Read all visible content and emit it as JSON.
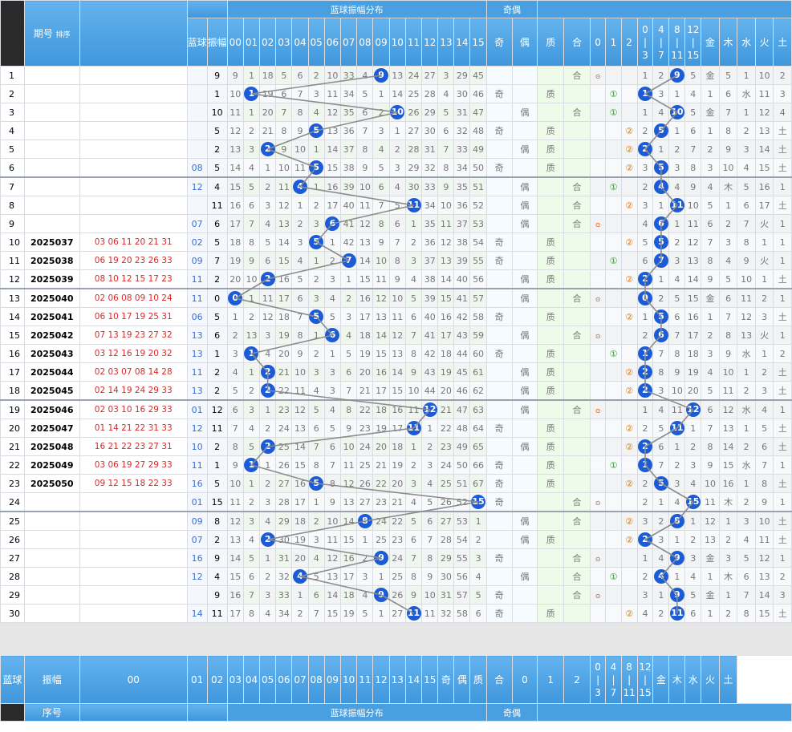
{
  "header": {
    "seq_label": "序号",
    "period_label": "期号",
    "sort_label": "排序",
    "blue_label": "蓝球",
    "amp_label": "振幅",
    "group_amp": "蓝球振幅分布",
    "group_parity": "奇偶",
    "amp_cols": [
      "00",
      "01",
      "02",
      "03",
      "04",
      "05",
      "06",
      "07",
      "08",
      "09",
      "10",
      "11",
      "12",
      "13",
      "14",
      "15"
    ],
    "parity_cols": [
      "奇",
      "偶"
    ],
    "prime_cols": [
      "质",
      "合"
    ],
    "road_cols": [
      "0",
      "1",
      "2"
    ],
    "range_cols": [
      "0-3",
      "4-7",
      "8-11",
      "12-15"
    ],
    "range_top": [
      "0",
      "4",
      "8",
      "12"
    ],
    "range_mid": [
      "|",
      "|",
      "|",
      "|"
    ],
    "range_bot": [
      "3",
      "7",
      "11",
      "15"
    ],
    "wuxing_cols": [
      "金",
      "木",
      "水",
      "火",
      "土"
    ]
  },
  "rows": [
    {
      "seq": "1",
      "period": "",
      "nums": "",
      "blue": "",
      "amp": "9",
      "hit": 9,
      "cells": [
        "9",
        "1",
        "18",
        "5",
        "6",
        "2",
        "10",
        "33",
        "4",
        "9",
        "13",
        "24",
        "27",
        "3",
        "29",
        "45"
      ],
      "parity": "",
      "pr": "合",
      "road": "0",
      "range": 2,
      "wx": "金",
      "rng": [
        "1",
        "2",
        "9",
        "5"
      ],
      "wxv": [
        "金",
        "5",
        "1",
        "10",
        "2"
      ]
    },
    {
      "seq": "2",
      "period": "",
      "nums": "",
      "blue": "",
      "amp": "1",
      "hit": 1,
      "cells": [
        "10",
        "1",
        "19",
        "6",
        "7",
        "3",
        "11",
        "34",
        "5",
        "1",
        "14",
        "25",
        "28",
        "4",
        "30",
        "46"
      ],
      "parity": "奇",
      "pr": "质",
      "road": "1",
      "range": 0,
      "wx": "水",
      "rng": [
        "1",
        "3",
        "1",
        "4"
      ],
      "wxv": [
        "1",
        "6",
        "水",
        "11",
        "3"
      ]
    },
    {
      "seq": "3",
      "period": "",
      "nums": "",
      "blue": "",
      "amp": "10",
      "hit": 10,
      "cells": [
        "11",
        "1",
        "20",
        "7",
        "8",
        "4",
        "12",
        "35",
        "6",
        "2",
        "10",
        "26",
        "29",
        "5",
        "31",
        "47"
      ],
      "parity": "偶",
      "pr": "合",
      "road": "1",
      "range": 2,
      "wx": "金",
      "rng": [
        "1",
        "4",
        "10",
        "5"
      ],
      "wxv": [
        "金",
        "7",
        "1",
        "12",
        "4"
      ]
    },
    {
      "seq": "4",
      "period": "",
      "nums": "",
      "blue": "",
      "amp": "5",
      "hit": 5,
      "cells": [
        "12",
        "2",
        "21",
        "8",
        "9",
        "5",
        "13",
        "36",
        "7",
        "3",
        "1",
        "27",
        "30",
        "6",
        "32",
        "48"
      ],
      "parity": "奇",
      "pr": "质",
      "road": "2",
      "range": 1,
      "wx": "土",
      "rng": [
        "2",
        "5",
        "1",
        "6"
      ],
      "wxv": [
        "1",
        "8",
        "2",
        "13",
        "土"
      ]
    },
    {
      "seq": "5",
      "period": "",
      "nums": "",
      "blue": "",
      "amp": "2",
      "hit": 2,
      "cells": [
        "13",
        "3",
        "2",
        "9",
        "10",
        "1",
        "14",
        "37",
        "8",
        "4",
        "2",
        "28",
        "31",
        "7",
        "33",
        "49"
      ],
      "parity": "偶",
      "pr": "质",
      "road": "2",
      "range": 0,
      "wx": "土",
      "rng": [
        "2",
        "1",
        "2",
        "7"
      ],
      "wxv": [
        "2",
        "9",
        "3",
        "14",
        "土"
      ]
    },
    {
      "seq": "6",
      "period": "",
      "nums": "",
      "blue": "08",
      "amp": "5",
      "hit": 5,
      "cells": [
        "14",
        "4",
        "1",
        "10",
        "11",
        "5",
        "15",
        "38",
        "9",
        "5",
        "3",
        "29",
        "32",
        "8",
        "34",
        "50"
      ],
      "parity": "奇",
      "pr": "质",
      "road": "2",
      "range": 1,
      "wx": "土",
      "rng": [
        "3",
        "5",
        "3",
        "8"
      ],
      "wxv": [
        "3",
        "10",
        "4",
        "15",
        "土"
      ]
    },
    {
      "seq": "7",
      "period": "",
      "nums": "",
      "blue": "12",
      "amp": "4",
      "hit": 4,
      "cells": [
        "15",
        "5",
        "2",
        "11",
        "4",
        "1",
        "16",
        "39",
        "10",
        "6",
        "4",
        "30",
        "33",
        "9",
        "35",
        "51"
      ],
      "parity": "偶",
      "pr": "合",
      "road": "1",
      "range": 1,
      "wx": "木",
      "rng": [
        "2",
        "4",
        "4",
        "9"
      ],
      "wxv": [
        "4",
        "木",
        "5",
        "16",
        "1"
      ]
    },
    {
      "seq": "8",
      "period": "",
      "nums": "",
      "blue": "",
      "amp": "11",
      "hit": 11,
      "cells": [
        "16",
        "6",
        "3",
        "12",
        "1",
        "2",
        "17",
        "40",
        "11",
        "7",
        "5",
        "11",
        "34",
        "10",
        "36",
        "52"
      ],
      "parity": "偶",
      "pr": "合",
      "road": "2",
      "range": 2,
      "wx": "土",
      "rng": [
        "3",
        "1",
        "11",
        "10"
      ],
      "wxv": [
        "5",
        "1",
        "6",
        "17",
        "土"
      ]
    },
    {
      "seq": "9",
      "period": "",
      "nums": "",
      "blue": "07",
      "amp": "6",
      "hit": 6,
      "cells": [
        "17",
        "7",
        "4",
        "13",
        "2",
        "3",
        "6",
        "41",
        "12",
        "8",
        "6",
        "1",
        "35",
        "11",
        "37",
        "53"
      ],
      "parity": "偶",
      "pr": "合",
      "road": "0",
      "range": 1,
      "wx": "火",
      "rng": [
        "4",
        "6",
        "1",
        "11"
      ],
      "wxv": [
        "6",
        "2",
        "7",
        "火",
        "1"
      ]
    },
    {
      "seq": "10",
      "period": "2025037",
      "nums": "03 06 11 20 21 31",
      "blue": "02",
      "amp": "5",
      "hit": 5,
      "cells": [
        "18",
        "8",
        "5",
        "14",
        "3",
        "5",
        "1",
        "42",
        "13",
        "9",
        "7",
        "2",
        "36",
        "12",
        "38",
        "54"
      ],
      "parity": "奇",
      "pr": "质",
      "road": "2",
      "range": 1,
      "wx": "",
      "rng": [
        "5",
        "5",
        "2",
        "12"
      ],
      "wxv": [
        "7",
        "3",
        "8",
        "1",
        "1"
      ]
    },
    {
      "seq": "11",
      "period": "2025038",
      "nums": "06 19 20 23 26 33",
      "blue": "09",
      "amp": "7",
      "hit": 7,
      "cells": [
        "19",
        "9",
        "6",
        "15",
        "4",
        "1",
        "2",
        "7",
        "14",
        "10",
        "8",
        "3",
        "37",
        "13",
        "39",
        "55"
      ],
      "parity": "奇",
      "pr": "质",
      "road": "1",
      "range": 1,
      "wx": "火",
      "rng": [
        "6",
        "7",
        "3",
        "13"
      ],
      "wxv": [
        "8",
        "4",
        "9",
        "火",
        "1"
      ]
    },
    {
      "seq": "12",
      "period": "2025039",
      "nums": "08 10 12 15 17 23",
      "blue": "11",
      "amp": "2",
      "hit": 2,
      "cells": [
        "20",
        "10",
        "2",
        "16",
        "5",
        "2",
        "3",
        "1",
        "15",
        "11",
        "9",
        "4",
        "38",
        "14",
        "40",
        "56"
      ],
      "parity": "偶",
      "pr": "质",
      "road": "2",
      "range": 0,
      "wx": "土",
      "rng": [
        "2",
        "1",
        "4",
        "14"
      ],
      "wxv": [
        "9",
        "5",
        "10",
        "1",
        "土"
      ]
    },
    {
      "seq": "13",
      "period": "2025040",
      "nums": "02 06 08 09 10 24",
      "blue": "11",
      "amp": "0",
      "hit": 0,
      "cells": [
        "0",
        "1",
        "11",
        "17",
        "6",
        "3",
        "4",
        "2",
        "16",
        "12",
        "10",
        "5",
        "39",
        "15",
        "41",
        "57"
      ],
      "parity": "偶",
      "pr": "合",
      "road": "0",
      "range": 0,
      "wx": "金",
      "rng": [
        "0",
        "2",
        "5",
        "15"
      ],
      "wxv": [
        "金",
        "6",
        "11",
        "2",
        "1"
      ]
    },
    {
      "seq": "14",
      "period": "2025041",
      "nums": "06 10 17 19 25 31",
      "blue": "06",
      "amp": "5",
      "hit": 5,
      "cells": [
        "1",
        "2",
        "12",
        "18",
        "7",
        "5",
        "5",
        "3",
        "17",
        "13",
        "11",
        "6",
        "40",
        "16",
        "42",
        "58"
      ],
      "parity": "奇",
      "pr": "质",
      "road": "2",
      "range": 1,
      "wx": "土",
      "rng": [
        "1",
        "5",
        "6",
        "16"
      ],
      "wxv": [
        "1",
        "7",
        "12",
        "3",
        "土"
      ]
    },
    {
      "seq": "15",
      "period": "2025042",
      "nums": "07 13 19 23 27 32",
      "blue": "13",
      "amp": "6",
      "hit": 6,
      "cells": [
        "2",
        "13",
        "3",
        "19",
        "8",
        "1",
        "6",
        "4",
        "18",
        "14",
        "12",
        "7",
        "41",
        "17",
        "43",
        "59"
      ],
      "parity": "偶",
      "pr": "合",
      "road": "0",
      "range": 1,
      "wx": "火",
      "rng": [
        "2",
        "6",
        "7",
        "17"
      ],
      "wxv": [
        "2",
        "8",
        "13",
        "火",
        "1"
      ]
    },
    {
      "seq": "16",
      "period": "2025043",
      "nums": "03 12 16 19 20 32",
      "blue": "13",
      "amp": "1",
      "hit": 1,
      "cells": [
        "3",
        "1",
        "4",
        "20",
        "9",
        "2",
        "1",
        "5",
        "19",
        "15",
        "13",
        "8",
        "42",
        "18",
        "44",
        "60"
      ],
      "parity": "奇",
      "pr": "质",
      "road": "1",
      "range": 0,
      "wx": "水",
      "rng": [
        "1",
        "7",
        "8",
        "18"
      ],
      "wxv": [
        "3",
        "9",
        "水",
        "1",
        "2"
      ]
    },
    {
      "seq": "17",
      "period": "2025044",
      "nums": "02 03 07 08 14 28",
      "blue": "11",
      "amp": "2",
      "hit": 2,
      "cells": [
        "4",
        "1",
        "2",
        "21",
        "10",
        "3",
        "3",
        "6",
        "20",
        "16",
        "14",
        "9",
        "43",
        "19",
        "45",
        "61"
      ],
      "parity": "偶",
      "pr": "质",
      "road": "2",
      "range": 0,
      "wx": "土",
      "rng": [
        "2",
        "8",
        "9",
        "19"
      ],
      "wxv": [
        "4",
        "10",
        "1",
        "2",
        "土"
      ]
    },
    {
      "seq": "18",
      "period": "2025045",
      "nums": "02 14 19 24 29 33",
      "blue": "13",
      "amp": "2",
      "hit": 2,
      "cells": [
        "5",
        "2",
        "2",
        "22",
        "11",
        "4",
        "3",
        "7",
        "21",
        "17",
        "15",
        "10",
        "44",
        "20",
        "46",
        "62"
      ],
      "parity": "偶",
      "pr": "质",
      "road": "2",
      "range": 0,
      "wx": "土",
      "rng": [
        "2",
        "3",
        "10",
        "20"
      ],
      "wxv": [
        "5",
        "11",
        "2",
        "3",
        "土"
      ]
    },
    {
      "seq": "19",
      "period": "2025046",
      "nums": "02 03 10 16 29 33",
      "blue": "01",
      "amp": "12",
      "hit": 12,
      "cells": [
        "6",
        "3",
        "1",
        "23",
        "12",
        "5",
        "4",
        "8",
        "22",
        "18",
        "16",
        "11",
        "12",
        "21",
        "47",
        "63"
      ],
      "parity": "偶",
      "pr": "合",
      "road": "0",
      "range": 3,
      "wx": "水",
      "rng": [
        "1",
        "4",
        "11",
        "12"
      ],
      "wxv": [
        "6",
        "12",
        "水",
        "4",
        "1"
      ]
    },
    {
      "seq": "20",
      "period": "2025047",
      "nums": "01 14 21 22 31 33",
      "blue": "12",
      "amp": "11",
      "hit": 11,
      "cells": [
        "7",
        "4",
        "2",
        "24",
        "13",
        "6",
        "5",
        "9",
        "23",
        "19",
        "17",
        "11",
        "1",
        "22",
        "48",
        "64"
      ],
      "parity": "奇",
      "pr": "质",
      "road": "2",
      "range": 2,
      "wx": "土",
      "rng": [
        "2",
        "5",
        "11",
        "1"
      ],
      "wxv": [
        "7",
        "13",
        "1",
        "5",
        "土"
      ]
    },
    {
      "seq": "21",
      "period": "2025048",
      "nums": "16 21 22 23 27 31",
      "blue": "10",
      "amp": "2",
      "hit": 2,
      "cells": [
        "8",
        "5",
        "2",
        "25",
        "14",
        "7",
        "6",
        "10",
        "24",
        "20",
        "18",
        "1",
        "2",
        "23",
        "49",
        "65"
      ],
      "parity": "偶",
      "pr": "质",
      "road": "2",
      "range": 0,
      "wx": "土",
      "rng": [
        "2",
        "6",
        "1",
        "2"
      ],
      "wxv": [
        "8",
        "14",
        "2",
        "6",
        "土"
      ]
    },
    {
      "seq": "22",
      "period": "2025049",
      "nums": "03 06 19 27 29 33",
      "blue": "11",
      "amp": "1",
      "hit": 1,
      "cells": [
        "9",
        "1",
        "1",
        "26",
        "15",
        "8",
        "7",
        "11",
        "25",
        "21",
        "19",
        "2",
        "3",
        "24",
        "50",
        "66"
      ],
      "parity": "奇",
      "pr": "质",
      "road": "1",
      "range": 0,
      "wx": "水",
      "rng": [
        "1",
        "7",
        "2",
        "3"
      ],
      "wxv": [
        "9",
        "15",
        "水",
        "7",
        "1"
      ]
    },
    {
      "seq": "23",
      "period": "2025050",
      "nums": "09 12 15 18 22 33",
      "blue": "16",
      "amp": "5",
      "hit": 5,
      "cells": [
        "10",
        "1",
        "2",
        "27",
        "16",
        "5",
        "8",
        "12",
        "26",
        "22",
        "20",
        "3",
        "4",
        "25",
        "51",
        "67"
      ],
      "parity": "奇",
      "pr": "质",
      "road": "2",
      "range": 1,
      "wx": "土",
      "rng": [
        "2",
        "5",
        "3",
        "4"
      ],
      "wxv": [
        "10",
        "16",
        "1",
        "8",
        "土"
      ]
    },
    {
      "seq": "24",
      "period": "",
      "nums": "",
      "blue": "01",
      "amp": "15",
      "hit": 15,
      "cells": [
        "11",
        "2",
        "3",
        "28",
        "17",
        "1",
        "9",
        "13",
        "27",
        "23",
        "21",
        "4",
        "5",
        "26",
        "52",
        "15"
      ],
      "parity": "奇",
      "pr": "合",
      "road": "0",
      "range": 3,
      "wx": "木",
      "rng": [
        "2",
        "1",
        "4",
        "15"
      ],
      "wxv": [
        "11",
        "木",
        "2",
        "9",
        "1"
      ]
    },
    {
      "seq": "25",
      "period": "",
      "nums": "",
      "blue": "09",
      "amp": "8",
      "hit": 8,
      "cells": [
        "12",
        "3",
        "4",
        "29",
        "18",
        "2",
        "10",
        "14",
        "8",
        "24",
        "22",
        "5",
        "6",
        "27",
        "53",
        "1"
      ],
      "parity": "偶",
      "pr": "合",
      "road": "2",
      "range": 2,
      "wx": "土",
      "rng": [
        "3",
        "2",
        "8",
        "1"
      ],
      "wxv": [
        "12",
        "1",
        "3",
        "10",
        "土"
      ]
    },
    {
      "seq": "26",
      "period": "",
      "nums": "",
      "blue": "07",
      "amp": "2",
      "hit": 2,
      "cells": [
        "13",
        "4",
        "2",
        "30",
        "19",
        "3",
        "11",
        "15",
        "1",
        "25",
        "23",
        "6",
        "7",
        "28",
        "54",
        "2"
      ],
      "parity": "偶",
      "pr": "质",
      "road": "2",
      "range": 0,
      "wx": "土",
      "rng": [
        "2",
        "3",
        "1",
        "2"
      ],
      "wxv": [
        "13",
        "2",
        "4",
        "11",
        "土"
      ]
    },
    {
      "seq": "27",
      "period": "",
      "nums": "",
      "blue": "16",
      "amp": "9",
      "hit": 9,
      "cells": [
        "14",
        "5",
        "1",
        "31",
        "20",
        "4",
        "12",
        "16",
        "2",
        "9",
        "24",
        "7",
        "8",
        "29",
        "55",
        "3"
      ],
      "parity": "奇",
      "pr": "合",
      "road": "0",
      "range": 2,
      "wx": "金",
      "rng": [
        "1",
        "4",
        "9",
        "3"
      ],
      "wxv": [
        "金",
        "3",
        "5",
        "12",
        "1"
      ]
    },
    {
      "seq": "28",
      "period": "",
      "nums": "",
      "blue": "12",
      "amp": "4",
      "hit": 4,
      "cells": [
        "15",
        "6",
        "2",
        "32",
        "4",
        "5",
        "13",
        "17",
        "3",
        "1",
        "25",
        "8",
        "9",
        "30",
        "56",
        "4"
      ],
      "parity": "偶",
      "pr": "合",
      "road": "1",
      "range": 1,
      "wx": "木",
      "rng": [
        "2",
        "4",
        "1",
        "4"
      ],
      "wxv": [
        "1",
        "木",
        "6",
        "13",
        "2"
      ]
    },
    {
      "seq": "29",
      "period": "",
      "nums": "",
      "blue": "",
      "amp": "9",
      "hit": 9,
      "cells": [
        "16",
        "7",
        "3",
        "33",
        "1",
        "6",
        "14",
        "18",
        "4",
        "9",
        "26",
        "9",
        "10",
        "31",
        "57",
        "5"
      ],
      "parity": "奇",
      "pr": "合",
      "road": "0",
      "range": 2,
      "wx": "金",
      "rng": [
        "3",
        "1",
        "9",
        "5"
      ],
      "wxv": [
        "金",
        "1",
        "7",
        "14",
        "3"
      ]
    },
    {
      "seq": "30",
      "period": "",
      "nums": "",
      "blue": "14",
      "amp": "11",
      "hit": 11,
      "cells": [
        "17",
        "8",
        "4",
        "34",
        "2",
        "7",
        "15",
        "19",
        "5",
        "1",
        "27",
        "11",
        "11",
        "32",
        "58",
        "6"
      ],
      "parity": "奇",
      "pr": "质",
      "road": "2",
      "range": 2,
      "wx": "土",
      "rng": [
        "4",
        "2",
        "11",
        "6"
      ],
      "wxv": [
        "1",
        "2",
        "8",
        "15",
        "土"
      ]
    }
  ]
}
